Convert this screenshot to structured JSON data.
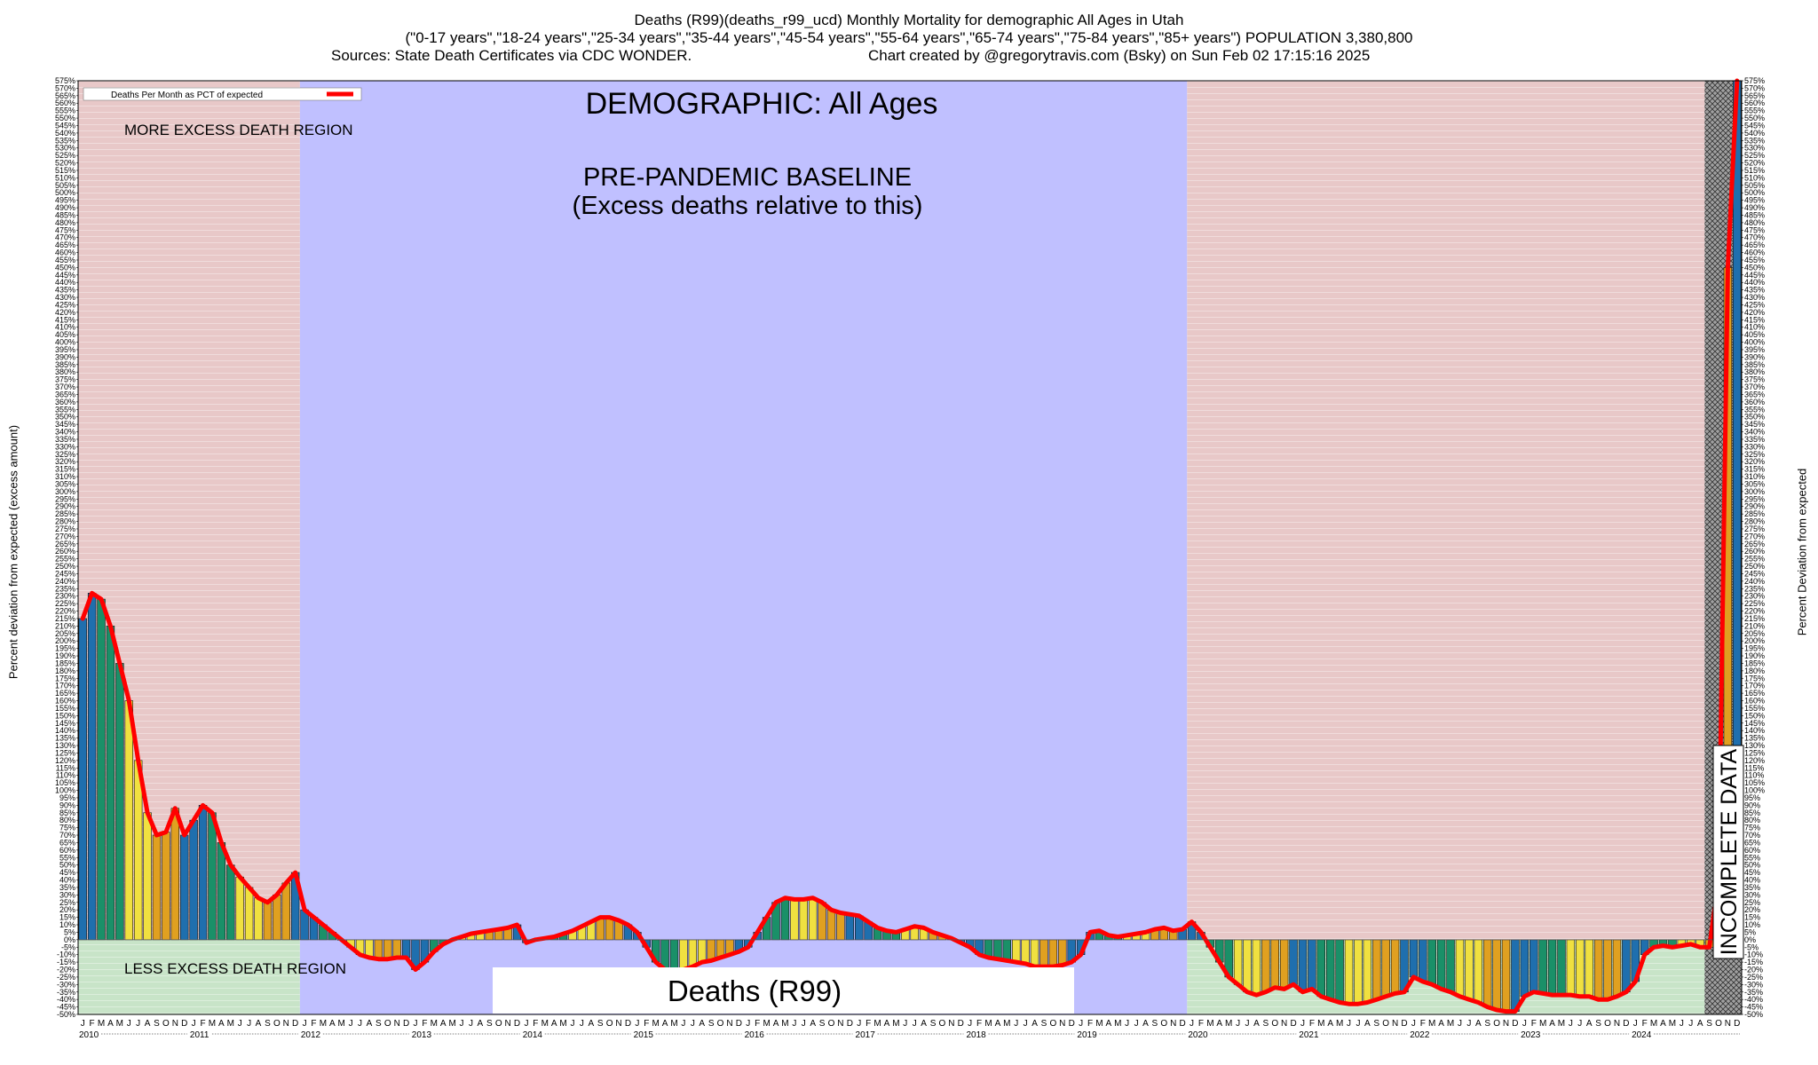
{
  "header": {
    "line1": "Deaths (R99)(deaths_r99_ucd) Monthly Mortality for demographic All Ages in Utah",
    "line2": "(\"0-17 years\",\"18-24 years\",\"25-34 years\",\"35-44 years\",\"45-54 years\",\"55-64 years\",\"65-74 years\",\"75-84 years\",\"85+ years\") POPULATION 3,380,800",
    "line3_left": "Sources: State Death Certificates via CDC WONDER.",
    "line3_right": "Chart created by @gregorytravis.com (Bsky) on Sun Feb 02 17:15:16 2025"
  },
  "chart_data": {
    "type": "bar",
    "ylabel_left": "Percent deviation from expected (excess amount)",
    "ylabel_right": "Percent Deviation from expected",
    "ylim": [
      -50,
      575
    ],
    "ytick_step": 5,
    "legend": {
      "label": "Deaths Per Month as PCT of expected",
      "color": "#ff0000",
      "placement": "top-left"
    },
    "annotations": {
      "demographic": "DEMOGRAPHIC: All Ages",
      "baseline_1": "PRE-PANDEMIC BASELINE",
      "baseline_2": "(Excess deaths relative to this)",
      "more_region": "MORE EXCESS DEATH REGION",
      "less_region": "LESS EXCESS DEATH REGION",
      "incomplete": "INCOMPLETE DATA",
      "cause": "Deaths (R99)"
    },
    "regions": {
      "baseline_start": "2012-01",
      "baseline_end": "2019-12",
      "incomplete_start": "2024-09",
      "excess_color": "#e8c8c8",
      "deficit_color": "#c8e4c8",
      "baseline_color": "#c0c0ff"
    },
    "month_letters": [
      "J",
      "F",
      "M",
      "A",
      "M",
      "J",
      "J",
      "A",
      "S",
      "O",
      "N",
      "D"
    ],
    "years": [
      "2010",
      "2011",
      "2012",
      "2013",
      "2014",
      "2015",
      "2016",
      "2017",
      "2018",
      "2019",
      "2020",
      "2021",
      "2022",
      "2023",
      "2024"
    ],
    "season_colors": [
      "#1f6fae",
      "#1a9068",
      "#f0e040",
      "#e0a020"
    ],
    "values_by_year": {
      "2010": [
        215,
        232,
        228,
        210,
        185,
        160,
        120,
        85,
        70,
        72,
        88,
        70
      ],
      "2011": [
        80,
        90,
        85,
        65,
        50,
        42,
        35,
        28,
        25,
        30,
        38,
        45
      ],
      "2012": [
        20,
        15,
        10,
        5,
        0,
        -5,
        -10,
        -12,
        -13,
        -13,
        -12,
        -12
      ],
      "2013": [
        -20,
        -15,
        -8,
        -3,
        0,
        2,
        4,
        5,
        6,
        7,
        8,
        10
      ],
      "2014": [
        -2,
        0,
        1,
        2,
        4,
        6,
        9,
        12,
        15,
        15,
        13,
        10
      ],
      "2015": [
        5,
        -5,
        -15,
        -20,
        -22,
        -20,
        -18,
        -15,
        -14,
        -12,
        -10,
        -8
      ],
      "2016": [
        -5,
        5,
        15,
        25,
        28,
        27,
        27,
        28,
        25,
        20,
        18,
        17
      ],
      "2017": [
        16,
        12,
        8,
        6,
        5,
        7,
        9,
        8,
        5,
        3,
        1,
        -2
      ],
      "2018": [
        -5,
        -10,
        -12,
        -13,
        -14,
        -15,
        -16,
        -18,
        -18,
        -18,
        -17,
        -15
      ],
      "2019": [
        -10,
        5,
        6,
        3,
        2,
        3,
        4,
        5,
        7,
        8,
        6,
        7
      ],
      "2020": [
        12,
        5,
        -5,
        -15,
        -25,
        -30,
        -35,
        -37,
        -35,
        -32,
        -33,
        -30
      ],
      "2021": [
        -35,
        -33,
        -38,
        -40,
        -42,
        -43,
        -43,
        -42,
        -40,
        -38,
        -36,
        -35
      ],
      "2022": [
        -25,
        -28,
        -30,
        -33,
        -35,
        -38,
        -40,
        -42,
        -45,
        -47,
        -48,
        -48
      ],
      "2023": [
        -38,
        -35,
        -36,
        -37,
        -37,
        -37,
        -38,
        -38,
        -40,
        -40,
        -38,
        -35
      ],
      "2024": [
        -28,
        -10,
        -5,
        -4,
        -5,
        -4,
        -3,
        -5,
        -5,
        40,
        450,
        580
      ]
    }
  }
}
